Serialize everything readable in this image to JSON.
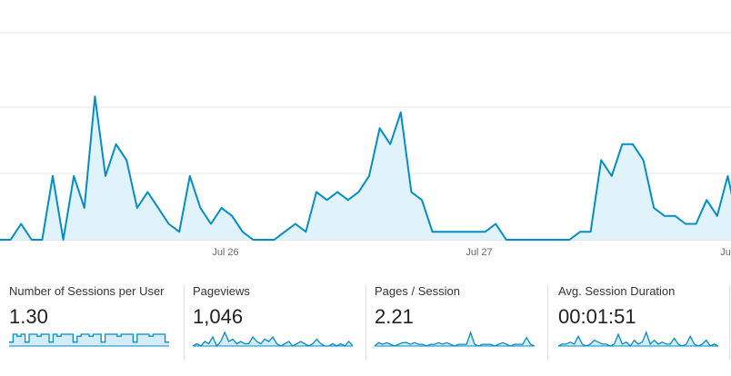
{
  "chart_data": {
    "type": "area",
    "x_tick_labels": [
      "Jul 26",
      "Jul 27",
      "Ju"
    ],
    "series": [
      {
        "color": "#058dc7",
        "fill": "#e1f3fa",
        "values": [
          0,
          0,
          1,
          0,
          0,
          4,
          0,
          4,
          2,
          9,
          4,
          6,
          5,
          2,
          3,
          2,
          1,
          0.5,
          4,
          2,
          1,
          2,
          1.5,
          0.5,
          0,
          0,
          0,
          0.5,
          1,
          0.5,
          3,
          2.5,
          3,
          2.5,
          3,
          4,
          7,
          6,
          8,
          3,
          2.5,
          0.5,
          0.5,
          0.5,
          0.5,
          0.5,
          0.5,
          1,
          0,
          0,
          0,
          0,
          0,
          0,
          0,
          0.5,
          0.5,
          5,
          4,
          6,
          6,
          5,
          2,
          1.5,
          1.5,
          1,
          1,
          2.5,
          1.5,
          4,
          1
        ]
      }
    ],
    "ylim": [
      0,
      13
    ],
    "gridlines": true
  },
  "metrics": [
    {
      "label": "Number of Sessions per User",
      "value": "1.30",
      "spark": [
        2,
        6,
        5,
        6,
        2,
        6,
        6,
        5,
        6,
        6,
        2,
        6,
        5,
        6,
        6,
        6,
        2,
        5,
        6,
        6,
        5,
        6,
        6,
        2,
        6,
        6,
        6,
        5,
        6,
        6,
        6,
        2,
        6,
        6,
        6,
        5,
        6,
        6,
        6,
        2,
        2
      ],
      "spark_style": "step"
    },
    {
      "label": "Pageviews",
      "value": "1,046",
      "spark": [
        0,
        1,
        0,
        2,
        1,
        4,
        0,
        2,
        6,
        2,
        3,
        1,
        2,
        1,
        1,
        4,
        2,
        1,
        3,
        2,
        4,
        1,
        0,
        1,
        2,
        0,
        1,
        2,
        1,
        0,
        1,
        3,
        1,
        0,
        0,
        1,
        0,
        1,
        0,
        2,
        0
      ],
      "spark_style": "line"
    },
    {
      "label": "Pages / Session",
      "value": "2.21",
      "spark": [
        0,
        2,
        1,
        2,
        1,
        0,
        1,
        2,
        2,
        1,
        2,
        1,
        1,
        0,
        1,
        1,
        2,
        1,
        2,
        1,
        0,
        1,
        1,
        1,
        8,
        1,
        0,
        1,
        1,
        1,
        0,
        1,
        2,
        1,
        0,
        1,
        1,
        1,
        5,
        1,
        0
      ],
      "spark_style": "line"
    },
    {
      "label": "Avg. Session Duration",
      "value": "00:01:51",
      "spark": [
        0,
        1,
        1,
        2,
        1,
        5,
        1,
        0,
        1,
        3,
        2,
        1,
        1,
        0,
        1,
        6,
        1,
        2,
        0,
        3,
        1,
        2,
        7,
        1,
        3,
        1,
        2,
        1,
        1,
        4,
        1,
        0,
        1,
        5,
        1,
        0,
        1,
        3,
        0,
        1,
        0
      ],
      "spark_style": "line"
    }
  ]
}
